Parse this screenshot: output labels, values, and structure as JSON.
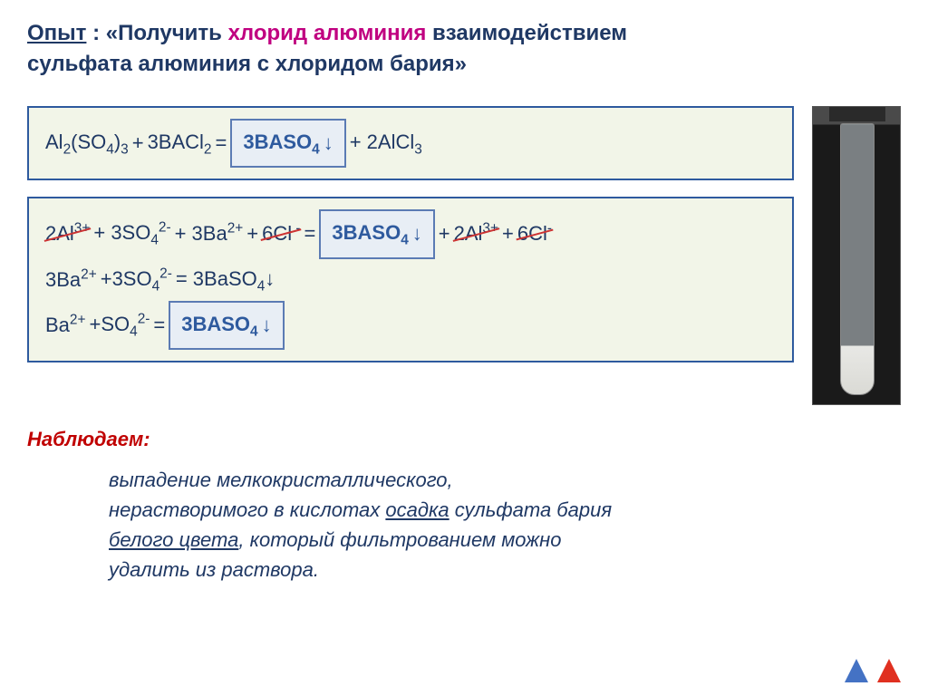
{
  "title": {
    "word_opyt": "Опыт",
    "colon": " : «",
    "word_poluchit": "Получить",
    "space": "  ",
    "word_chloride_al": "хлорид алюминия",
    "rest_line1": "  взаимодействием",
    "line2": "сульфата алюминия с хлоридом бария»"
  },
  "colors": {
    "title_main": "#1f3864",
    "title_magenta": "#c00080",
    "box_border": "#2e5a9e",
    "box_bg": "#f2f5e8",
    "product_border": "#5b7bb4",
    "product_bg": "#e8eef5",
    "product_text": "#2e5a9e",
    "strike": "#cc3333",
    "observe_label": "#c00000",
    "nav_blue": "#4472c4",
    "nav_red": "#e03020"
  },
  "equation1": {
    "lhs_1": "Al",
    "lhs_1_sub": "2",
    "lhs_2": "(SO",
    "lhs_2_sub": "4",
    "lhs_3": ")",
    "lhs_3_sub": "3",
    "plus": " + ",
    "lhs_4": "3BACl",
    "lhs_4_sub": "2",
    "eq": " = ",
    "product_pre": "3BASO",
    "product_sub": "4",
    "arrow": "↓",
    "rhs_plus": " + 2AlCl",
    "rhs_sub": "3"
  },
  "equation2": {
    "line1": {
      "t1": "2Al",
      "t1_sup": "3+",
      "plus1": " + 3SO",
      "so4_sub": "4",
      "so4_sup": "2-",
      "plus2": "+ 3Ba",
      "ba_sup": "2+",
      "plus3": " + ",
      "cl": "6Cl",
      "cl_sup": " -",
      "eq": "  =",
      "prod_pre": "3BASO",
      "prod_sub": "4",
      "arrow": "↓",
      "plus4": " + ",
      "al2": "2Al",
      "al2_sup": "3+",
      "plus5": " + ",
      "cl2": "6Cl",
      "cl2_sup": "-"
    },
    "line2": {
      "t": "3Ba",
      "t_sup": "2+",
      "plus": " +3SO",
      "so4_sub": "4",
      "so4_sup": "2-",
      "eq": " = 3BaSO",
      "res_sub": "4",
      "arrow": "↓"
    },
    "line3": {
      "t": "Ba",
      "t_sup": "2+",
      "plus": " +SO",
      "so4_sub": "4",
      "so4_sup": "2-",
      "eq": " = ",
      "prod_pre": "3BASO",
      "prod_sub": "4",
      "arrow": "↓"
    }
  },
  "observe": {
    "label": "Наблюдаем:",
    "p1": "выпадение мелкокристаллического,",
    "p2_a": "нерастворимого в кислотах ",
    "p2_u": "осадка",
    "p2_b": "  сульфата бария",
    "p3_u": "белого цвета",
    "p3_b": ", который ",
    "p3_c": "фильтрованием можно",
    "p4": "удалить из раствора",
    "p4_dot": "."
  },
  "font": {
    "title_size": 24,
    "eq_size": 22,
    "observe_size": 22
  }
}
